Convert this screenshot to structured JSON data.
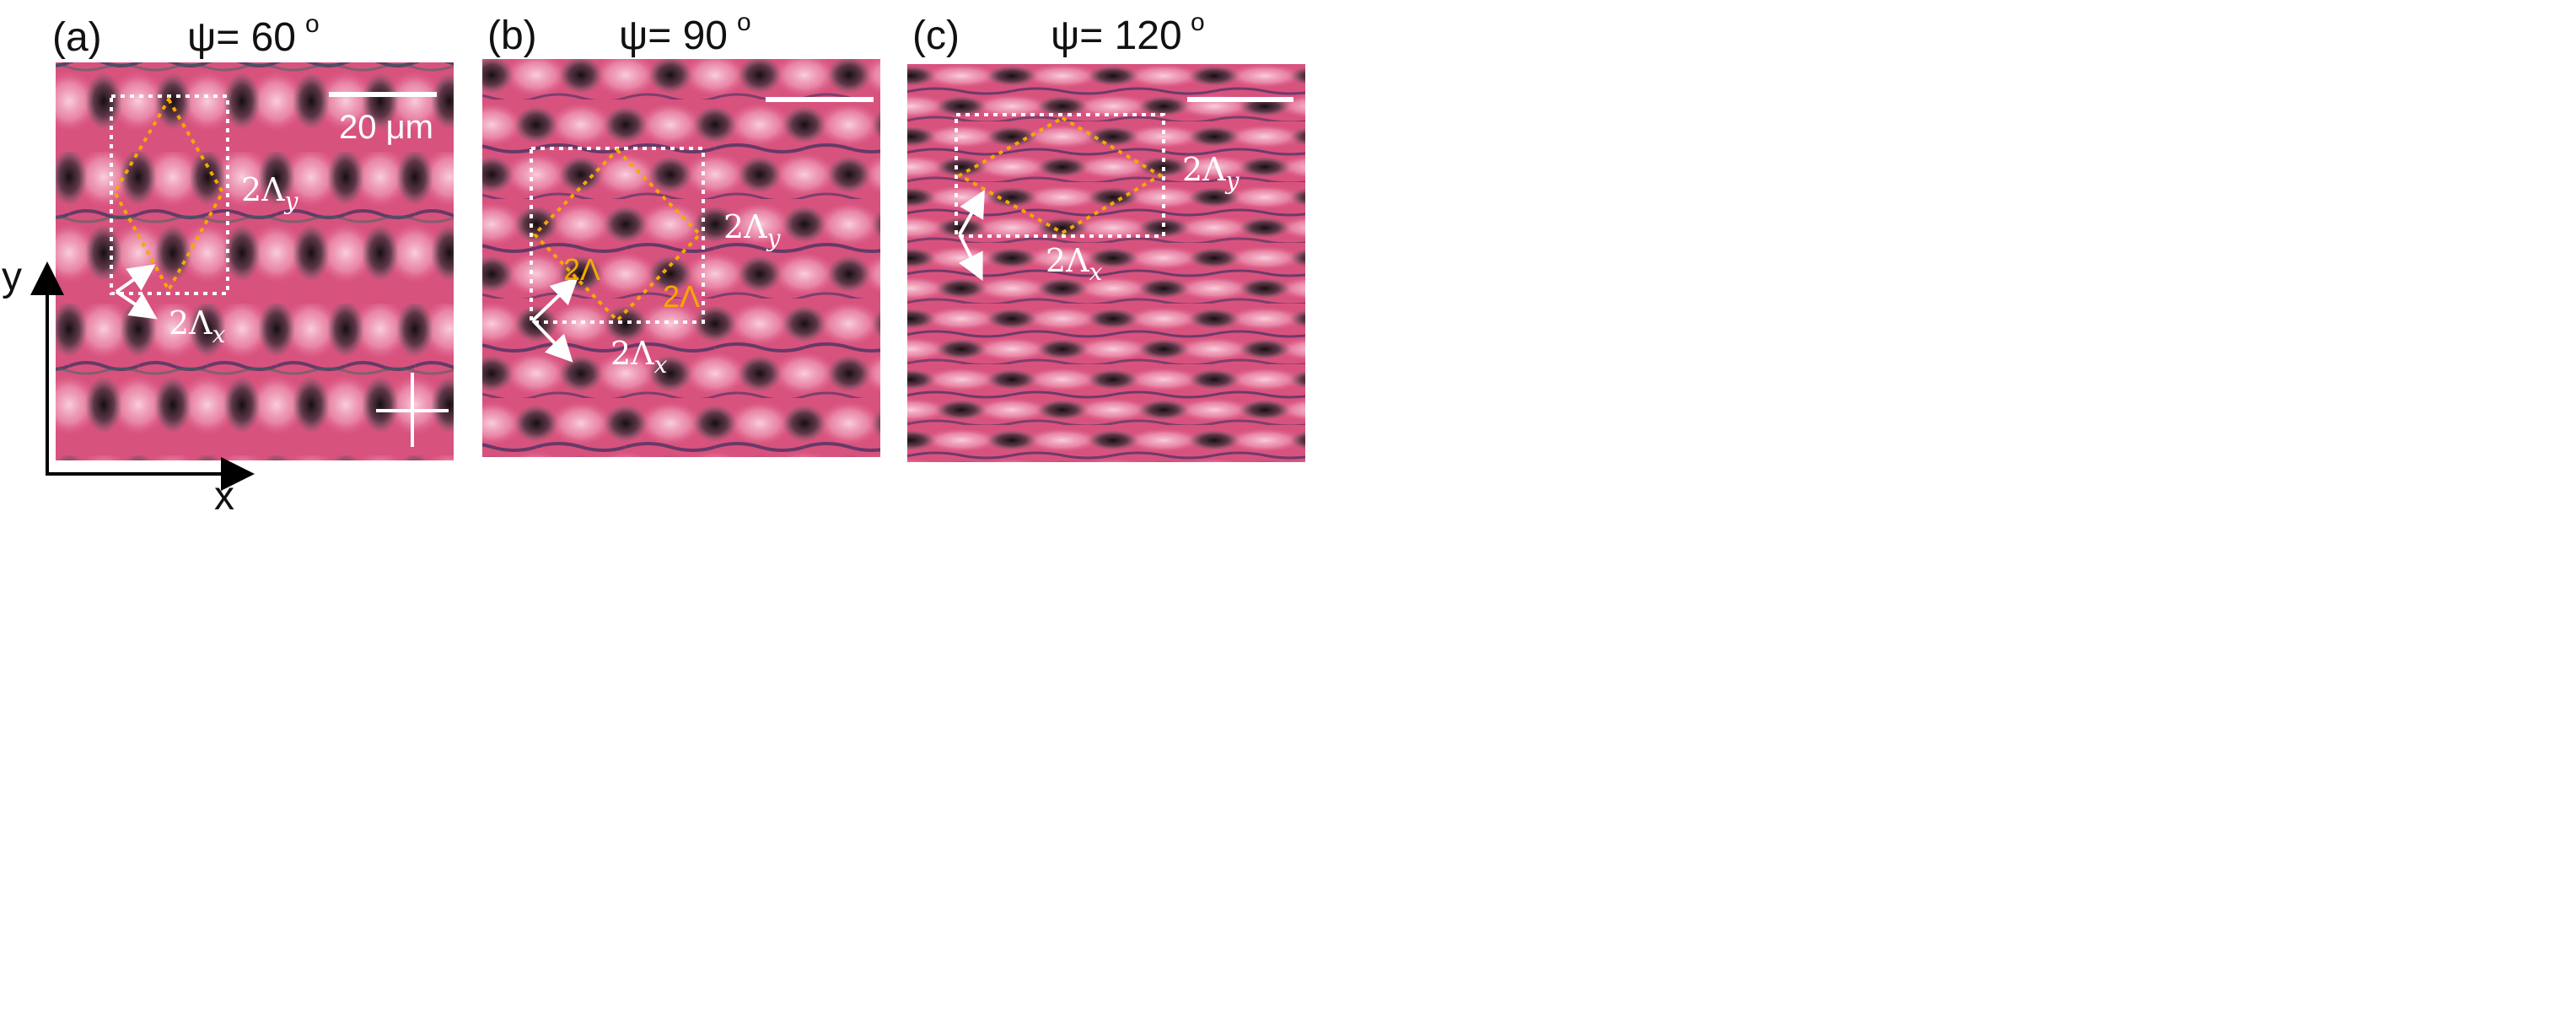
{
  "figure": {
    "axes": {
      "y_label": "y",
      "x_label": "x"
    },
    "panels": [
      {
        "id": "a",
        "label": "(a)",
        "angle_label": "ψ= 60",
        "angle_sup": "o",
        "scale_bar_text": "20 μm",
        "lambda_y_label": "2Λ",
        "lambda_y_sub": "y",
        "lambda_x_label": "2Λ",
        "lambda_x_sub": "x",
        "has_crosshair": true
      },
      {
        "id": "b",
        "label": "(b)",
        "angle_label": "ψ= 90",
        "angle_sup": "o",
        "lambda_y_label": "2Λ",
        "lambda_y_sub": "y",
        "lambda_x_label": "2Λ",
        "lambda_x_sub": "x",
        "lambda_label": "2Λ"
      },
      {
        "id": "c",
        "label": "(c)",
        "angle_label": "ψ= 120",
        "angle_sup": "o",
        "lambda_y_label": "2Λ",
        "lambda_y_sub": "y",
        "lambda_x_label": "2Λ",
        "lambda_x_sub": "x"
      }
    ],
    "colors": {
      "background": "#ffffff",
      "image_base": "#d8527e",
      "bright_spot": "#f7c3d4",
      "dark_spot": "#141414",
      "stripe": "#41305f",
      "box_dotted": "#ffffff",
      "lattice_dotted": "#f5a800",
      "arrow": "#ffffff",
      "text_dark": "#111111"
    }
  }
}
